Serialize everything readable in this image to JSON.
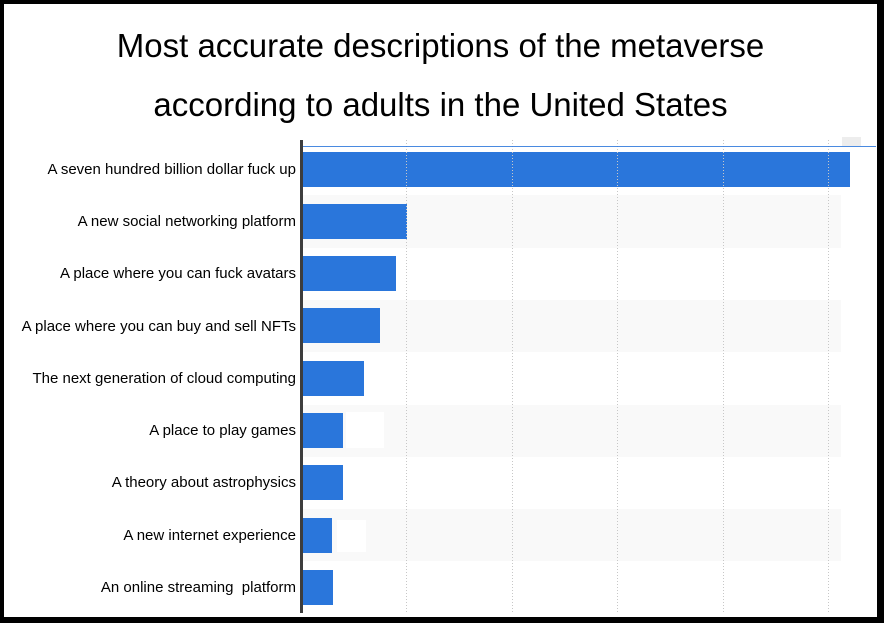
{
  "title": {
    "line1": "Most accurate descriptions of the metaverse",
    "line2": "according to adults in the United States"
  },
  "chart_data": {
    "type": "bar",
    "orientation": "horizontal",
    "title": "Most accurate descriptions of the metaverse according to adults in the United States",
    "categories": [
      "A seven hundred billion dollar fuck up",
      "A new social networking platform",
      "A place where you can fuck avatars",
      "A place where you can buy and sell NFTs",
      "The next generation of cloud computing",
      "A place to play games",
      "A theory about astrophysics",
      "A new internet experience",
      "An online streaming  platform"
    ],
    "values": [
      52,
      10,
      9,
      7.5,
      6,
      4,
      4,
      2.9,
      3
    ],
    "value_unit": "percent (estimated; gridlines are unlabeled, assumed 10% apart)",
    "xlabel": "",
    "ylabel": "",
    "xlim": [
      0,
      55
    ],
    "gridline_interval": 10,
    "grid": "vertical dotted gridlines, no tick labels",
    "legend": "none",
    "notes": "Static meme chart: top bar extends past the last gridline; small white patches where value labels next to 'A place to play games' and 'A new internet experience' were erased; thin blue smear line along the top of the plot area."
  },
  "colors": {
    "bar": "#2a76db",
    "row_band": "#f9f9f9",
    "axis": "#3d3d3d",
    "gridline": "#c7c7c7",
    "text": "#000000",
    "frame_border": "#000000"
  }
}
